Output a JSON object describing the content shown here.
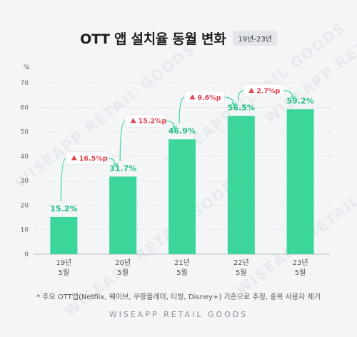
{
  "title": "OTT 앱 설치율 동월 변화",
  "period": "19년-23년",
  "footnote": "* 주요 OTT앱(Netflix, 웨이브, 쿠팡플레이, 티빙, Disney+) 기준으로 추정, 중복 사용자 제거",
  "brand": "WISEAPP RETAIL GOODS",
  "colors": {
    "bar": "#3dd69a",
    "value_label": "#1fbf83",
    "growth": "#e0424f",
    "connector": "#3dd69a"
  },
  "chart_data": {
    "type": "bar",
    "ylabel": "%",
    "ylim": [
      0,
      70
    ],
    "yticks": [
      0,
      10,
      20,
      30,
      40,
      50,
      60,
      70
    ],
    "categories": [
      {
        "year": "19년",
        "month": "5월"
      },
      {
        "year": "20년",
        "month": "5월"
      },
      {
        "year": "21년",
        "month": "5월"
      },
      {
        "year": "22년",
        "month": "5월"
      },
      {
        "year": "23년",
        "month": "5월"
      }
    ],
    "values": [
      15.2,
      31.7,
      46.9,
      56.5,
      59.2
    ],
    "value_labels": [
      "15.2%",
      "31.7%",
      "46.9%",
      "56.5%",
      "59.2%"
    ],
    "growth_labels": [
      "16.5%p",
      "15.2%p",
      "9.6%p",
      "2.7%p"
    ]
  }
}
